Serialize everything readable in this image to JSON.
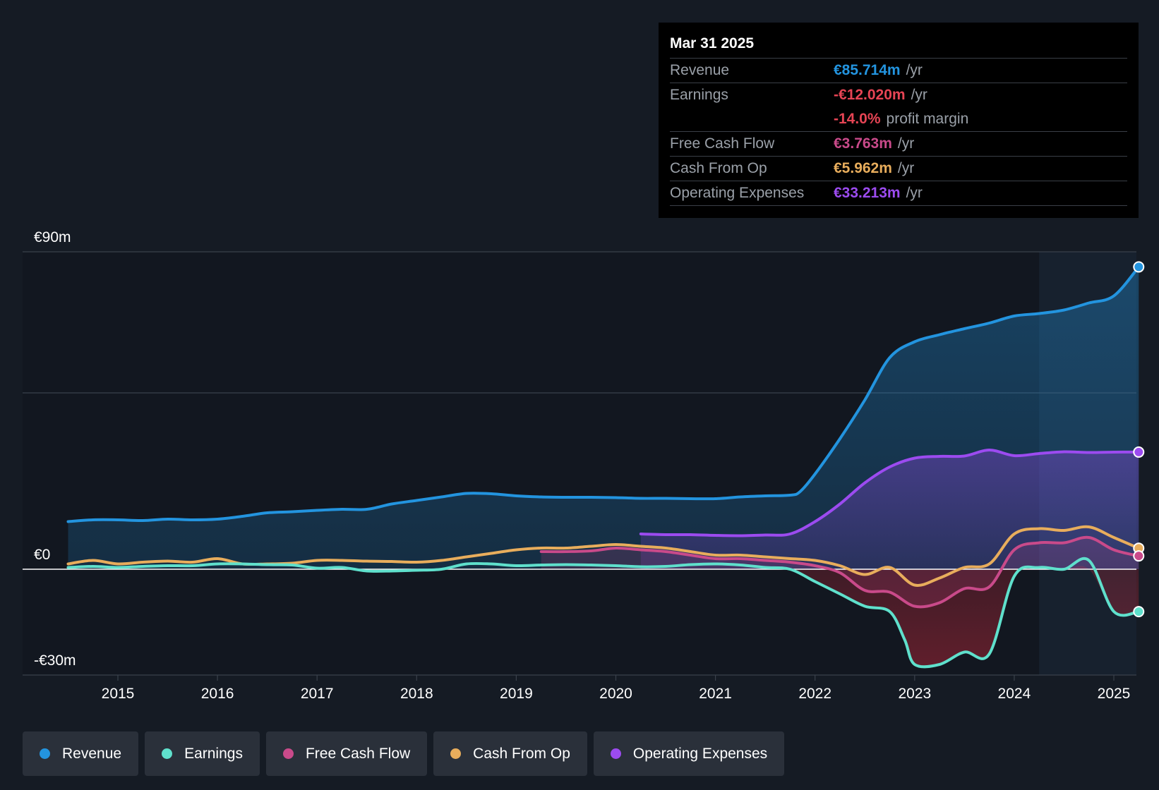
{
  "tooltip": {
    "date": "Mar 31 2025",
    "rows": [
      {
        "label": "Revenue",
        "value": "€85.714m",
        "unit": "/yr",
        "color": "#2394df"
      },
      {
        "label": "Earnings",
        "value": "-€12.020m",
        "unit": "/yr",
        "color": "#e64454"
      },
      {
        "label": "",
        "value": "-14.0%",
        "unit": "profit margin",
        "color": "#e64454"
      },
      {
        "label": "Free Cash Flow",
        "value": "€3.763m",
        "unit": "/yr",
        "color": "#c94a8a"
      },
      {
        "label": "Cash From Op",
        "value": "€5.962m",
        "unit": "/yr",
        "color": "#e8ad5c"
      },
      {
        "label": "Operating Expenses",
        "value": "€33.213m",
        "unit": "/yr",
        "color": "#9c4bf0"
      }
    ]
  },
  "legend": [
    {
      "label": "Revenue",
      "color": "#2394df"
    },
    {
      "label": "Earnings",
      "color": "#5fe0cc"
    },
    {
      "label": "Free Cash Flow",
      "color": "#c94a8a"
    },
    {
      "label": "Cash From Op",
      "color": "#e8ad5c"
    },
    {
      "label": "Operating Expenses",
      "color": "#9c4bf0"
    }
  ],
  "chart_data": {
    "type": "area",
    "title": "",
    "xlabel": "",
    "ylabel": "",
    "xlim": [
      2014.5,
      2025.25
    ],
    "ylim": [
      -30,
      90
    ],
    "y_tick_labels": [
      {
        "value": 90,
        "label": "€90m"
      },
      {
        "value": 0,
        "label": "€0"
      },
      {
        "value": -30,
        "label": "-€30m"
      }
    ],
    "gridlines": [
      90,
      50
    ],
    "x_ticks": [
      2015,
      2016,
      2017,
      2018,
      2019,
      2020,
      2021,
      2022,
      2023,
      2024,
      2025
    ],
    "highlight_from": 2024.25,
    "series": [
      {
        "name": "Revenue",
        "color": "#2394df",
        "x": [
          2014.5,
          2014.75,
          2015.0,
          2015.25,
          2015.5,
          2015.75,
          2016.0,
          2016.25,
          2016.5,
          2016.75,
          2017.0,
          2017.25,
          2017.5,
          2017.75,
          2018.0,
          2018.25,
          2018.5,
          2018.75,
          2019.0,
          2019.25,
          2019.5,
          2019.75,
          2020.0,
          2020.25,
          2020.5,
          2020.75,
          2021.0,
          2021.25,
          2021.5,
          2021.75,
          2021.85,
          2022.0,
          2022.25,
          2022.5,
          2022.75,
          2023.0,
          2023.25,
          2023.5,
          2023.75,
          2024.0,
          2024.25,
          2024.5,
          2024.75,
          2025.0,
          2025.25
        ],
        "y": [
          13.5,
          14.0,
          14.0,
          13.8,
          14.2,
          14.0,
          14.2,
          15.0,
          16.0,
          16.3,
          16.7,
          17.0,
          17.0,
          18.5,
          19.5,
          20.5,
          21.5,
          21.4,
          20.8,
          20.5,
          20.4,
          20.4,
          20.3,
          20.1,
          20.1,
          20.0,
          20.0,
          20.5,
          20.8,
          21.0,
          22.0,
          27.0,
          37.0,
          48.0,
          60.0,
          64.5,
          66.5,
          68.2,
          69.8,
          71.8,
          72.5,
          73.5,
          75.5,
          77.5,
          85.714
        ]
      },
      {
        "name": "Operating Expenses",
        "color": "#9c4bf0",
        "x": [
          2020.25,
          2020.5,
          2020.75,
          2021.0,
          2021.25,
          2021.5,
          2021.75,
          2022.0,
          2022.25,
          2022.5,
          2022.75,
          2023.0,
          2023.25,
          2023.5,
          2023.75,
          2024.0,
          2024.25,
          2024.5,
          2024.75,
          2025.0,
          2025.25
        ],
        "y": [
          10.0,
          9.8,
          9.8,
          9.6,
          9.5,
          9.7,
          10.0,
          13.5,
          18.5,
          24.5,
          29.0,
          31.5,
          32.0,
          32.1,
          33.8,
          32.2,
          32.8,
          33.3,
          33.1,
          33.2,
          33.213
        ]
      },
      {
        "name": "Cash From Op",
        "color": "#e8ad5c",
        "x": [
          2014.5,
          2014.75,
          2015.0,
          2015.25,
          2015.5,
          2015.75,
          2016.0,
          2016.25,
          2016.5,
          2016.75,
          2017.0,
          2017.25,
          2017.5,
          2017.75,
          2018.0,
          2018.25,
          2018.5,
          2018.75,
          2019.0,
          2019.25,
          2019.5,
          2019.75,
          2020.0,
          2020.25,
          2020.5,
          2020.75,
          2021.0,
          2021.25,
          2021.5,
          2021.75,
          2022.0,
          2022.25,
          2022.5,
          2022.75,
          2023.0,
          2023.25,
          2023.5,
          2023.75,
          2024.0,
          2024.25,
          2024.5,
          2024.75,
          2025.0,
          2025.25
        ],
        "y": [
          1.5,
          2.5,
          1.5,
          2.0,
          2.3,
          2.0,
          3.0,
          1.5,
          1.5,
          1.7,
          2.5,
          2.5,
          2.3,
          2.2,
          2.0,
          2.5,
          3.5,
          4.5,
          5.5,
          6.0,
          6.0,
          6.5,
          7.0,
          6.5,
          6.0,
          5.0,
          4.0,
          4.0,
          3.5,
          3.0,
          2.5,
          1.0,
          -1.5,
          0.5,
          -4.5,
          -2.5,
          0.5,
          1.5,
          10.0,
          11.5,
          11.0,
          12.0,
          9.0,
          5.962
        ]
      },
      {
        "name": "Free Cash Flow",
        "color": "#c94a8a",
        "x": [
          2019.25,
          2019.5,
          2019.75,
          2020.0,
          2020.25,
          2020.5,
          2020.75,
          2021.0,
          2021.25,
          2021.5,
          2021.75,
          2022.0,
          2022.25,
          2022.5,
          2022.75,
          2023.0,
          2023.25,
          2023.5,
          2023.75,
          2024.0,
          2024.25,
          2024.5,
          2024.75,
          2025.0,
          2025.25
        ],
        "y": [
          5.0,
          5.0,
          5.2,
          6.0,
          5.5,
          5.0,
          4.0,
          3.0,
          3.0,
          2.5,
          2.0,
          1.0,
          -1.0,
          -6.0,
          -6.5,
          -10.5,
          -9.5,
          -5.5,
          -5.0,
          5.5,
          7.5,
          7.5,
          9.0,
          5.5,
          3.763
        ]
      },
      {
        "name": "Earnings",
        "color": "#5fe0cc",
        "x": [
          2014.5,
          2014.75,
          2015.0,
          2015.25,
          2015.5,
          2015.75,
          2016.0,
          2016.25,
          2016.5,
          2016.75,
          2017.0,
          2017.25,
          2017.5,
          2017.75,
          2018.0,
          2018.25,
          2018.5,
          2018.75,
          2019.0,
          2019.25,
          2019.5,
          2019.75,
          2020.0,
          2020.25,
          2020.5,
          2020.75,
          2021.0,
          2021.25,
          2021.5,
          2021.75,
          2022.0,
          2022.25,
          2022.5,
          2022.75,
          2022.9,
          2023.0,
          2023.25,
          2023.5,
          2023.75,
          2024.0,
          2024.25,
          2024.5,
          2024.75,
          2025.0,
          2025.25
        ],
        "y": [
          0.5,
          0.8,
          0.5,
          0.8,
          1.0,
          1.0,
          1.5,
          1.5,
          1.3,
          1.2,
          0.3,
          0.5,
          -0.5,
          -0.5,
          -0.3,
          0.0,
          1.5,
          1.5,
          1.0,
          1.2,
          1.3,
          1.2,
          1.0,
          0.7,
          0.8,
          1.3,
          1.5,
          1.2,
          0.5,
          0.0,
          -3.5,
          -7.0,
          -10.5,
          -12.0,
          -20.0,
          -27.0,
          -27.0,
          -23.5,
          -24.0,
          -2.0,
          0.5,
          0.0,
          2.5,
          -12.0,
          -12.02
        ]
      }
    ]
  }
}
